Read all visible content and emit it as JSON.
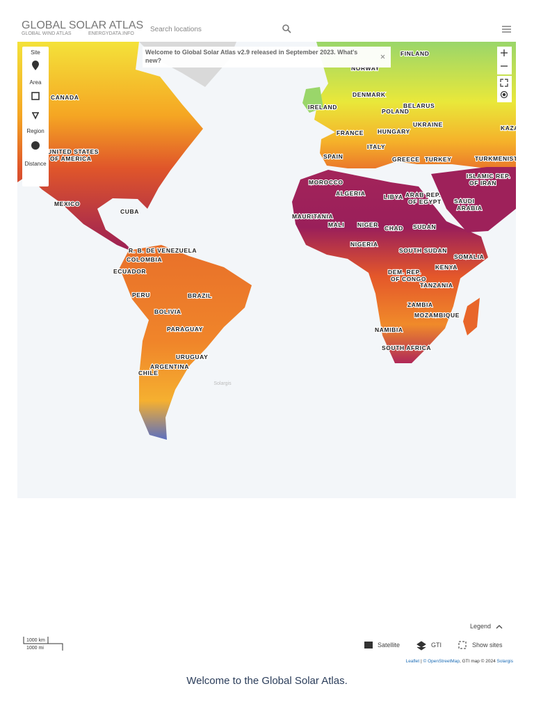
{
  "header": {
    "title": "GLOBAL SOLAR ATLAS",
    "links": [
      "GLOBAL WIND ATLAS",
      "ENERGYDATA.INFO"
    ],
    "search_placeholder": "Search locations"
  },
  "toolbar": {
    "items": [
      "Site",
      "Area",
      "Region",
      "Distance"
    ]
  },
  "notice": {
    "text": "Welcome to Global Solar Atlas v2.9 released in September 2023. What's new?"
  },
  "map": {
    "labels": [
      [
        "CANADA"
      ],
      [
        "UNITED STATES",
        "OF AMERICA"
      ],
      [
        "MEXICO"
      ],
      [
        "CUBA"
      ],
      [
        "R. B. DE VENEZUELA"
      ],
      [
        "COLOMBIA"
      ],
      [
        "ECUADOR"
      ],
      [
        "PERU"
      ],
      [
        "BRAZIL"
      ],
      [
        "BOLIVIA"
      ],
      [
        "PARAGUAY"
      ],
      [
        "URUGUAY"
      ],
      [
        "ARGENTINA"
      ],
      [
        "CHILE"
      ],
      [
        "FINLAND"
      ],
      [
        "NORWAY"
      ],
      [
        "DENMARK"
      ],
      [
        "IRELAND"
      ],
      [
        "POLAND"
      ],
      [
        "BELARUS"
      ],
      [
        "UKRAINE"
      ],
      [
        "FRANCE"
      ],
      [
        "HUNGARY"
      ],
      [
        "ITALY"
      ],
      [
        "SPAIN"
      ],
      [
        "GREECE"
      ],
      [
        "TURKEY"
      ],
      [
        "TURKMENISTAN"
      ],
      [
        "KAZAKHSTAN"
      ],
      [
        "MOROCCO"
      ],
      [
        "ALGERIA"
      ],
      [
        "LIBYA"
      ],
      [
        "ARAB REP.",
        "OF EGYPT"
      ],
      [
        "SAUDI",
        "ARABIA"
      ],
      [
        "ISLAMIC REP.",
        "OF IRAN"
      ],
      [
        "MAURITANIA"
      ],
      [
        "MALI"
      ],
      [
        "NIGER"
      ],
      [
        "CHAD"
      ],
      [
        "SUDAN"
      ],
      [
        "NIGERIA"
      ],
      [
        "SOUTH SUDAN"
      ],
      [
        "SOMALIA"
      ],
      [
        "KENYA"
      ],
      [
        "DEM. REP.",
        "OF CONGO"
      ],
      [
        "TANZANIA"
      ],
      [
        "ZAMBIA"
      ],
      [
        "MOZAMBIQUE"
      ],
      [
        "NAMIBIA"
      ],
      [
        "SOUTH AFRICA"
      ]
    ],
    "watermark": "Solargis"
  },
  "controls": {
    "scale": [
      "1000 km",
      "1000 mi"
    ],
    "legend": "Legend",
    "buttons": [
      "Satellite",
      "GTI",
      "Show sites"
    ]
  },
  "attribution": {
    "leaflet": "Leaflet",
    "separator": " | ",
    "osm": "© OpenStreetMap",
    "gti": ", GTI map © 2024 ",
    "solargis": "Solargis"
  },
  "footer": "Welcome to the Global Solar Atlas."
}
